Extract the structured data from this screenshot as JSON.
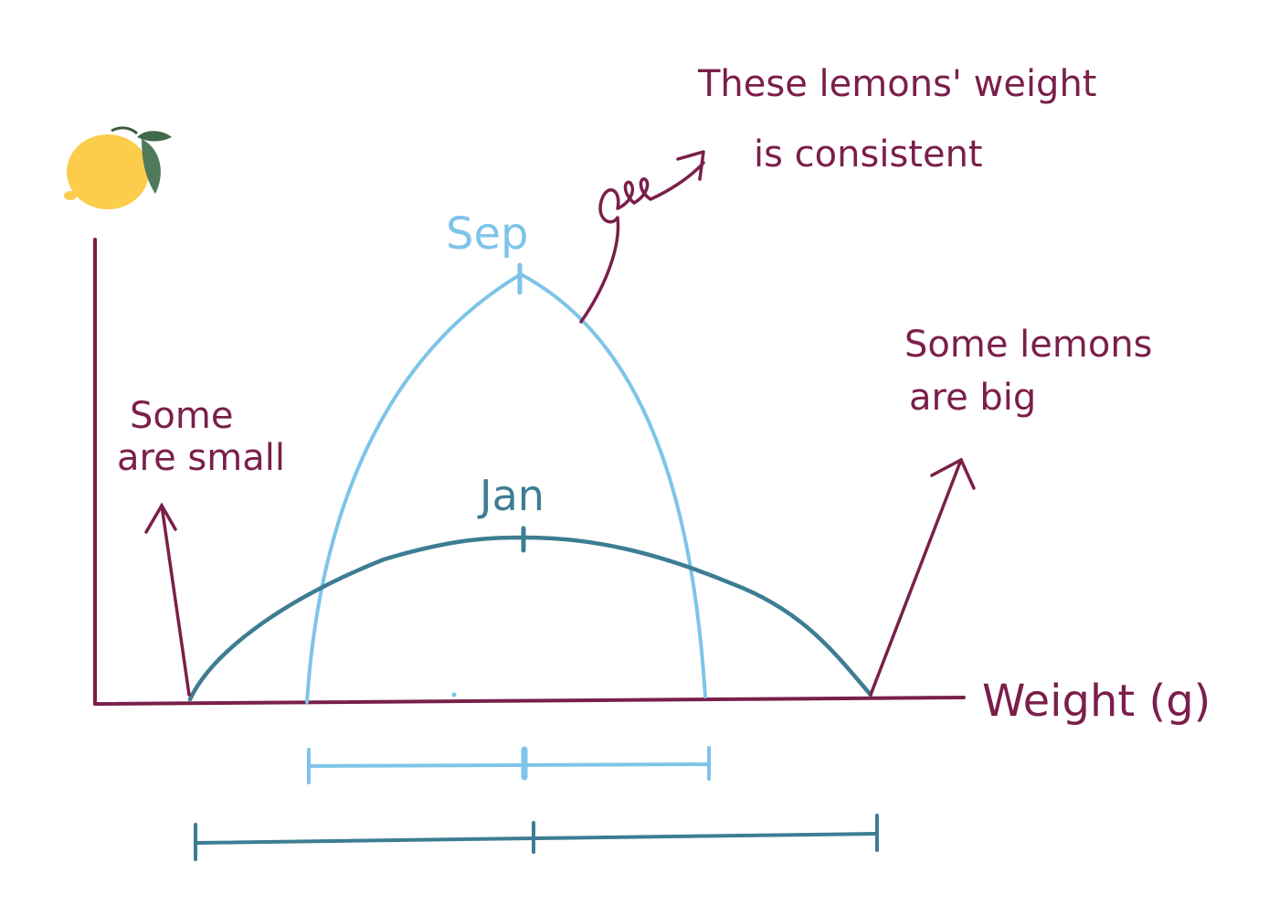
{
  "labels": {
    "sep": "Sep",
    "jan": "Jan",
    "x_axis": "Weight (g)",
    "small_line1": "Some",
    "small_line2": "are small",
    "big_line1": "Some lemons",
    "big_line2": "are big",
    "consistent_line1": "These lemons' weight",
    "consistent_line2": "is consistent"
  },
  "colors": {
    "axis": "#7a1f4a",
    "annotation": "#7a1f4a",
    "sep": "#7ec4e8",
    "jan": "#3d7d93",
    "lemon": "#fbcd4a",
    "leaf": "#4f7a5c"
  },
  "icons": {
    "lemon": "lemon-icon"
  }
}
